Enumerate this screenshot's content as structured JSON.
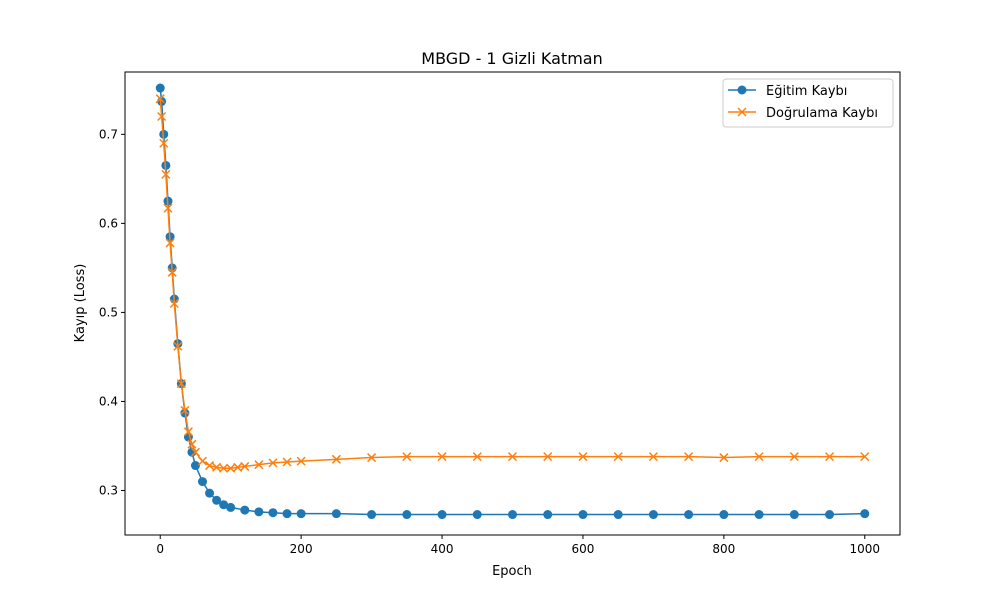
{
  "chart_data": {
    "type": "line",
    "title": "MBGD - 1 Gizli Katman",
    "xlabel": "Epoch",
    "ylabel": "Kayıp (Loss)",
    "xlim": [
      -50,
      1050
    ],
    "ylim": [
      0.25,
      0.77
    ],
    "x_ticks": [
      0,
      200,
      400,
      600,
      800,
      1000
    ],
    "x_tick_labels": [
      "0",
      "200",
      "400",
      "600",
      "800",
      "1000"
    ],
    "y_ticks": [
      0.3,
      0.4,
      0.5,
      0.6,
      0.7
    ],
    "y_tick_labels": [
      "0.3",
      "0.4",
      "0.5",
      "0.6",
      "0.7"
    ],
    "grid": false,
    "legend_position": "top-right",
    "series": [
      {
        "name": "Eğitim Kaybı",
        "color": "#1f77b4",
        "marker": "circle",
        "x": [
          0,
          2,
          5,
          8,
          11,
          14,
          17,
          20,
          25,
          30,
          35,
          40,
          45,
          50,
          60,
          70,
          80,
          90,
          100,
          120,
          140,
          160,
          180,
          200,
          250,
          300,
          350,
          400,
          450,
          500,
          550,
          600,
          650,
          700,
          750,
          800,
          850,
          900,
          950,
          1000
        ],
        "y": [
          0.752,
          0.737,
          0.7,
          0.665,
          0.625,
          0.585,
          0.55,
          0.515,
          0.465,
          0.42,
          0.387,
          0.36,
          0.343,
          0.328,
          0.31,
          0.297,
          0.289,
          0.284,
          0.281,
          0.278,
          0.276,
          0.275,
          0.274,
          0.274,
          0.274,
          0.273,
          0.273,
          0.273,
          0.273,
          0.273,
          0.273,
          0.273,
          0.273,
          0.273,
          0.273,
          0.273,
          0.273,
          0.273,
          0.273,
          0.274
        ]
      },
      {
        "name": "Doğrulama Kaybı",
        "color": "#ff7f0e",
        "marker": "x",
        "x": [
          0,
          2,
          5,
          8,
          11,
          14,
          17,
          20,
          25,
          30,
          35,
          40,
          45,
          50,
          60,
          70,
          80,
          90,
          100,
          110,
          120,
          140,
          160,
          180,
          200,
          250,
          300,
          350,
          400,
          450,
          500,
          550,
          600,
          650,
          700,
          750,
          800,
          850,
          900,
          950,
          1000
        ],
        "y": [
          0.74,
          0.72,
          0.69,
          0.655,
          0.617,
          0.578,
          0.545,
          0.51,
          0.462,
          0.42,
          0.39,
          0.366,
          0.352,
          0.343,
          0.333,
          0.328,
          0.326,
          0.325,
          0.325,
          0.326,
          0.327,
          0.329,
          0.331,
          0.332,
          0.333,
          0.335,
          0.337,
          0.338,
          0.338,
          0.338,
          0.338,
          0.338,
          0.338,
          0.338,
          0.338,
          0.338,
          0.337,
          0.338,
          0.338,
          0.338,
          0.338
        ]
      }
    ]
  }
}
